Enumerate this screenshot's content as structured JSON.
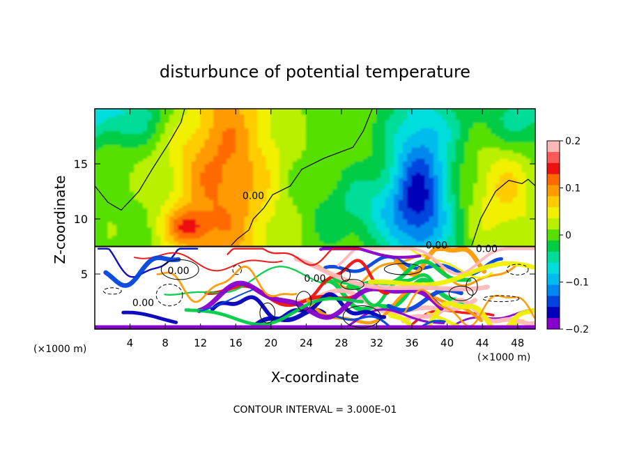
{
  "chart_data": {
    "type": "heatmap",
    "title": "disturbunce of potential temperature",
    "xlabel": "X-coordinate",
    "ylabel": "Z-coordinate",
    "x_unit": "(×1000 m)",
    "y_unit": "(×1000 m)",
    "xlim": [
      0,
      50
    ],
    "ylim": [
      0,
      20
    ],
    "x_ticks": [
      4,
      8,
      12,
      16,
      20,
      24,
      28,
      32,
      36,
      40,
      44,
      48
    ],
    "y_ticks": [
      5,
      10,
      15
    ],
    "colorbar": {
      "min": -0.2,
      "max": 0.2,
      "tick_values": [
        0.2,
        0.1,
        0,
        -0.1,
        -0.2
      ],
      "tick_labels": [
        "0.2",
        "0.1",
        "0",
        "−0.1",
        "−0.2"
      ],
      "colors": [
        "#ffb8b8",
        "#ff5a5a",
        "#ee1111",
        "#ff6a00",
        "#ff9a00",
        "#ffcc00",
        "#f0f000",
        "#b8f000",
        "#55e000",
        "#00cc44",
        "#00dd99",
        "#00dddd",
        "#00bbee",
        "#0088ee",
        "#0044dd",
        "#0000bb",
        "#8800cc"
      ]
    },
    "contour_labels": [
      {
        "text": "0.00",
        "x": 18.0,
        "y": 11.8
      },
      {
        "text": "0.00",
        "x": 9.5,
        "y": 5.0
      },
      {
        "text": "0.00",
        "x": 5.5,
        "y": 2.1
      },
      {
        "text": "0.00",
        "x": 25.0,
        "y": 4.3
      },
      {
        "text": "0.00",
        "x": 38.8,
        "y": 7.3
      },
      {
        "text": "0.00",
        "x": 44.5,
        "y": 7.0
      }
    ],
    "field_features": [
      {
        "name": "warm-plume",
        "x": 14.5,
        "y": 14.5,
        "sx": 6.0,
        "sy": 14.0,
        "v": 0.11
      },
      {
        "name": "warm-core",
        "x": 10.5,
        "y": 9.3,
        "sx": 2.5,
        "sy": 1.6,
        "v": 0.08
      },
      {
        "name": "warm-patch",
        "x": 46.5,
        "y": 12.5,
        "sx": 4.0,
        "sy": 5.0,
        "v": 0.06
      },
      {
        "name": "cold-column",
        "x": 37.0,
        "y": 12.5,
        "sx": 3.5,
        "sy": 8.5,
        "v": -0.14
      },
      {
        "name": "cold-band",
        "x": 32.0,
        "y": 11.0,
        "sx": 6.0,
        "sy": 3.0,
        "v": -0.05
      },
      {
        "name": "cold-top-left",
        "x": 0.0,
        "y": 19.5,
        "sx": 10.0,
        "sy": 2.5,
        "v": -0.07
      },
      {
        "name": "cold-top-right",
        "x": 50.0,
        "y": 19.0,
        "sx": 8.0,
        "sy": 3.0,
        "v": -0.05
      }
    ],
    "contour_interval_text": "CONTOUR INTERVAL = 3.000E-01"
  }
}
